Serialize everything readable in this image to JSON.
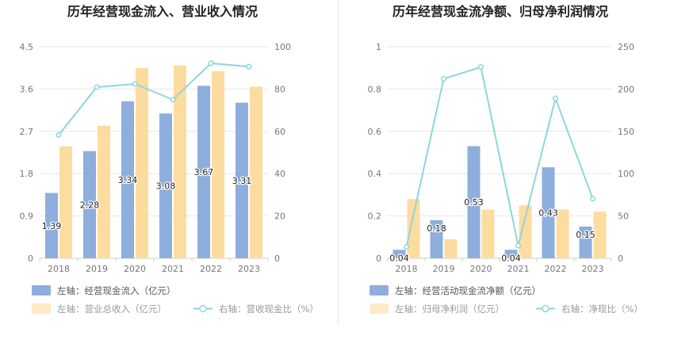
{
  "chart_data": [
    {
      "type": "bar",
      "title": "历年经营现金流入、营业收入情况",
      "categories": [
        "2018",
        "2019",
        "2020",
        "2021",
        "2022",
        "2023"
      ],
      "left_axis": {
        "ticks": [
          "0",
          "0.9",
          "1.8",
          "2.7",
          "3.6",
          "4.5"
        ],
        "ylim": [
          0,
          4.5
        ]
      },
      "right_axis": {
        "ticks": [
          "0",
          "20",
          "40",
          "60",
          "80",
          "100"
        ],
        "ylim": [
          0,
          100
        ]
      },
      "series": [
        {
          "name": "左轴：经营现金流入（亿元）",
          "type": "bar",
          "axis": "left",
          "color": "#8eaedd",
          "values": [
            1.39,
            2.28,
            3.34,
            3.08,
            3.67,
            3.31
          ],
          "labels": [
            "1.39",
            "2.28",
            "3.34",
            "3.08",
            "3.67",
            "3.31"
          ]
        },
        {
          "name": "左轴：营业总收入（亿元）",
          "type": "bar",
          "axis": "left",
          "color": "#fddc9f",
          "values": [
            2.38,
            2.82,
            4.05,
            4.1,
            3.98,
            3.65
          ]
        },
        {
          "name": "右轴：营收现金比（%）",
          "type": "line",
          "axis": "right",
          "color": "#8ed6db",
          "values": [
            58.3,
            80.9,
            82.4,
            75.0,
            92.2,
            90.6
          ]
        }
      ],
      "grid": true,
      "legend_position": "bottom-left"
    },
    {
      "type": "bar",
      "title": "历年经营现金流净额、归母净利润情况",
      "categories": [
        "2018",
        "2019",
        "2020",
        "2021",
        "2022",
        "2023"
      ],
      "left_axis": {
        "ticks": [
          "0",
          "0.2",
          "0.4",
          "0.6",
          "0.8",
          "1"
        ],
        "ylim": [
          0,
          1
        ]
      },
      "right_axis": {
        "ticks": [
          "0",
          "50",
          "100",
          "150",
          "200",
          "250"
        ],
        "ylim": [
          0,
          250
        ]
      },
      "series": [
        {
          "name": "左轴：经营活动现金流净额（亿元）",
          "type": "bar",
          "axis": "left",
          "color": "#8eaedd",
          "values": [
            0.04,
            0.18,
            0.53,
            0.04,
            0.43,
            0.15
          ],
          "labels": [
            "0.04",
            "0.18",
            "0.53",
            "0.04",
            "0.43",
            "0.15"
          ]
        },
        {
          "name": "左轴：归母净利润（亿元）",
          "type": "bar",
          "axis": "left",
          "color": "#fddc9f",
          "values": [
            0.28,
            0.09,
            0.23,
            0.25,
            0.23,
            0.22
          ]
        },
        {
          "name": "右轴：净现比（%）",
          "type": "line",
          "axis": "right",
          "color": "#8ed6db",
          "values": [
            13.5,
            212.0,
            226.0,
            15.0,
            189.0,
            70.5
          ]
        }
      ],
      "grid": true,
      "legend_position": "bottom-left"
    }
  ]
}
